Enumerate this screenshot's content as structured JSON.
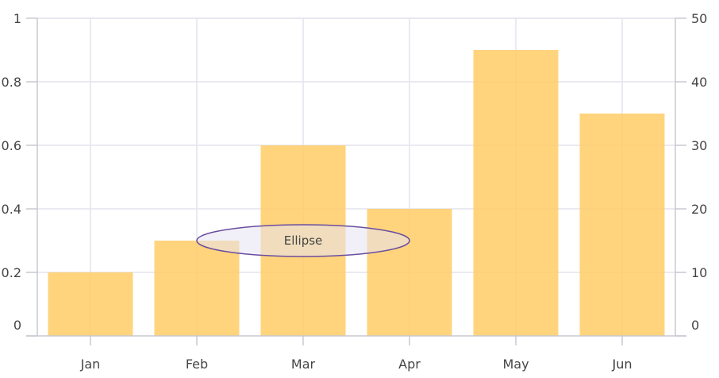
{
  "chart_data": {
    "type": "bar",
    "categories": [
      "Jan",
      "Feb",
      "Mar",
      "Apr",
      "May",
      "Jun"
    ],
    "values": [
      0.2,
      0.3,
      0.6,
      0.4,
      0.9,
      0.7
    ],
    "title": "",
    "xlabel": "",
    "ylabel": "",
    "ylim": [
      0,
      1
    ],
    "y_ticks": [
      "0",
      "0.2",
      "0.4",
      "0.6",
      "0.8",
      "1"
    ],
    "secondary_ylim": [
      0,
      50
    ],
    "secondary_y_ticks": [
      "0",
      "10",
      "20",
      "30",
      "40",
      "50"
    ],
    "grid": true,
    "legend": "none",
    "colors": {
      "bar": "#ffcc66",
      "grid": "#e4e4ee",
      "axis": "#c8c8d0",
      "annotation_stroke": "#6a4ea0",
      "annotation_fill": "#e6e4f3"
    },
    "annotations": [
      {
        "shape": "ellipse",
        "text": "Ellipse",
        "x_from": "Feb",
        "x_to": "Apr",
        "y_from": 0.25,
        "y_to": 0.35
      }
    ]
  }
}
